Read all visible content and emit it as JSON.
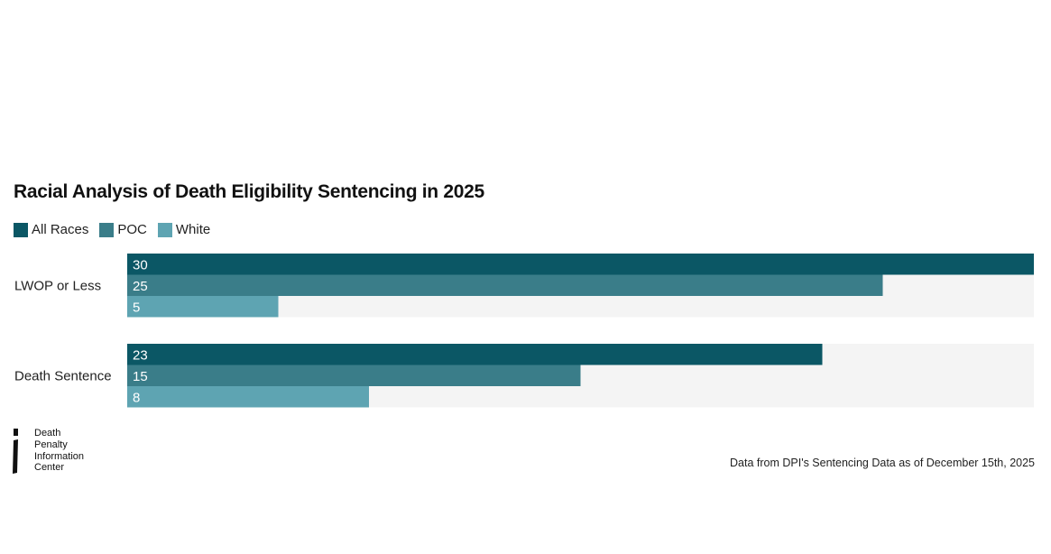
{
  "chart_data": {
    "type": "bar",
    "orientation": "horizontal",
    "title": "Racial Analysis of Death Eligibility Sentencing in 2025",
    "categories": [
      "LWOP or Less",
      "Death Sentence"
    ],
    "series": [
      {
        "name": "All Races",
        "values": [
          30,
          23
        ],
        "color": "#0b5765"
      },
      {
        "name": "POC",
        "values": [
          25,
          15
        ],
        "color": "#3a7d89"
      },
      {
        "name": "White",
        "values": [
          5,
          8
        ],
        "color": "#5ea4b2"
      }
    ],
    "xlim": [
      0,
      30
    ],
    "legend": "top-left",
    "grid": false,
    "track_color": "#f4f4f4",
    "source": "Data from DPI's Sentencing Data as of December 15th, 2025"
  },
  "logo": {
    "lines": [
      "Death",
      "Penalty",
      "Information",
      "Center"
    ]
  }
}
